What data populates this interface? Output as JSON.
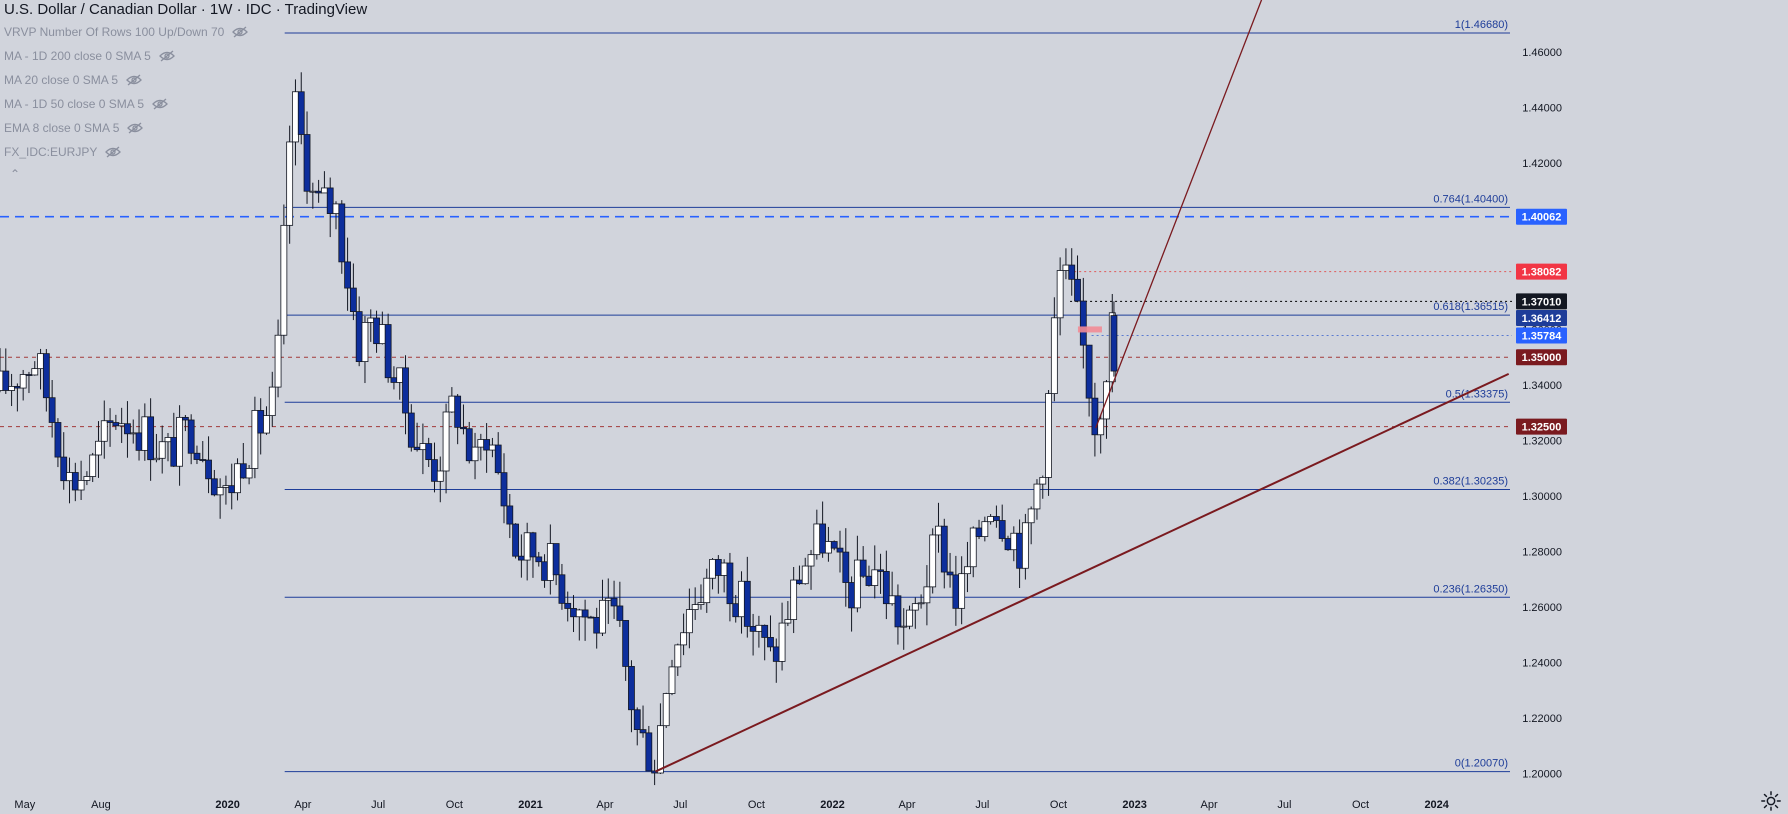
{
  "title": "U.S. Dollar / Canadian Dollar · 1W · IDC · TradingView",
  "indicators": [
    "VRVP Number Of Rows 100 Up/Down 70",
    "MA - 1D 200 close 0 SMA 5",
    "MA 20 close 0 SMA 5",
    "MA - 1D 50 close 0 SMA 5",
    "EMA 8 close 0 SMA 5",
    "FX_IDC:EURJPY"
  ],
  "colors": {
    "background": "#d1d4dc",
    "up_candle": "#ffffff",
    "down_candle": "#0d2e9c",
    "fib_line": "#1e3d99",
    "trend_line": "#7a1a1f",
    "dashed_blue": "#2962ff",
    "dashed_red": "#a33a3a",
    "axis_text": "#131722"
  },
  "chart_data": {
    "type": "candlestick",
    "title": "U.S. Dollar / Canadian Dollar · 1W · IDC · TradingView",
    "y_axis": {
      "ticks": [
        "1.46000",
        "1.44000",
        "1.42000",
        "1.40000",
        "1.38000",
        "1.36000",
        "1.34000",
        "1.32000",
        "1.30000",
        "1.28000",
        "1.26000",
        "1.24000",
        "1.22000",
        "1.20000"
      ],
      "ylim": [
        1.1955,
        1.4787
      ]
    },
    "x_axis": {
      "ticks": [
        {
          "label": "May",
          "date": "2019-05-01"
        },
        {
          "label": "Aug",
          "date": "2019-08-01"
        },
        {
          "label": "2020",
          "date": "2020-01-01"
        },
        {
          "label": "Apr",
          "date": "2020-04-01"
        },
        {
          "label": "Jul",
          "date": "2020-07-01"
        },
        {
          "label": "Oct",
          "date": "2020-10-01"
        },
        {
          "label": "2021",
          "date": "2021-01-01"
        },
        {
          "label": "Apr",
          "date": "2021-04-01"
        },
        {
          "label": "Jul",
          "date": "2021-07-01"
        },
        {
          "label": "Oct",
          "date": "2021-10-01"
        },
        {
          "label": "2022",
          "date": "2022-01-01"
        },
        {
          "label": "Apr",
          "date": "2022-04-01"
        },
        {
          "label": "Jul",
          "date": "2022-07-01"
        },
        {
          "label": "Oct",
          "date": "2022-10-01"
        },
        {
          "label": "2023",
          "date": "2023-01-01"
        },
        {
          "label": "Apr",
          "date": "2023-04-01"
        },
        {
          "label": "Jul",
          "date": "2023-07-01"
        },
        {
          "label": "Oct",
          "date": "2023-10-01"
        },
        {
          "label": "2024",
          "date": "2024-01-01"
        }
      ],
      "range": [
        "2019-04-01",
        "2024-04-01"
      ]
    },
    "anchors": [
      [
        "2019-04-01",
        1.338
      ],
      [
        "2019-05-15",
        1.35
      ],
      [
        "2019-06-25",
        1.305
      ],
      [
        "2019-07-20",
        1.31
      ],
      [
        "2019-08-20",
        1.33
      ],
      [
        "2019-09-15",
        1.325
      ],
      [
        "2019-10-20",
        1.315
      ],
      [
        "2019-11-20",
        1.325
      ],
      [
        "2019-12-30",
        1.3
      ],
      [
        "2020-01-20",
        1.315
      ],
      [
        "2020-02-28",
        1.335
      ],
      [
        "2020-03-19",
        1.445
      ],
      [
        "2020-04-15",
        1.405
      ],
      [
        "2020-05-10",
        1.405
      ],
      [
        "2020-06-08",
        1.355
      ],
      [
        "2020-06-25",
        1.365
      ],
      [
        "2020-08-20",
        1.317
      ],
      [
        "2020-09-10",
        1.31
      ],
      [
        "2020-10-01",
        1.335
      ],
      [
        "2020-10-25",
        1.31
      ],
      [
        "2020-11-10",
        1.325
      ],
      [
        "2020-12-15",
        1.28
      ],
      [
        "2021-01-15",
        1.28
      ],
      [
        "2021-02-15",
        1.265
      ],
      [
        "2021-03-15",
        1.255
      ],
      [
        "2021-04-15",
        1.255
      ],
      [
        "2021-05-10",
        1.215
      ],
      [
        "2021-06-01",
        1.205
      ],
      [
        "2021-06-20",
        1.245
      ],
      [
        "2021-07-20",
        1.265
      ],
      [
        "2021-08-20",
        1.275
      ],
      [
        "2021-09-15",
        1.26
      ],
      [
        "2021-10-20",
        1.24
      ],
      [
        "2021-11-25",
        1.275
      ],
      [
        "2021-12-20",
        1.285
      ],
      [
        "2022-01-20",
        1.265
      ],
      [
        "2022-02-20",
        1.275
      ],
      [
        "2022-04-01",
        1.25
      ],
      [
        "2022-05-10",
        1.285
      ],
      [
        "2022-06-01",
        1.262
      ],
      [
        "2022-07-10",
        1.3
      ],
      [
        "2022-08-20",
        1.28
      ],
      [
        "2022-09-15",
        1.32
      ],
      [
        "2022-10-01",
        1.38
      ],
      [
        "2022-10-15",
        1.375
      ],
      [
        "2022-11-02",
        1.35
      ],
      [
        "2022-11-15",
        1.325
      ],
      [
        "2022-12-07",
        1.365
      ]
    ],
    "last_candle": {
      "date": "2022-12-07",
      "open": 1.345,
      "high": 1.3701,
      "low": 1.343,
      "close": 1.365
    },
    "fib_levels": [
      {
        "ratio": "1",
        "value": 1.4668,
        "label": "1(1.46680)"
      },
      {
        "ratio": "0.764",
        "value": 1.404,
        "label": "0.764(1.40400)"
      },
      {
        "ratio": "0.618",
        "value": 1.36515,
        "label": "0.618(1.36515)"
      },
      {
        "ratio": "0.5",
        "value": 1.33375,
        "label": "0.5(1.33375)"
      },
      {
        "ratio": "0.382",
        "value": 1.30235,
        "label": "0.382(1.30235)"
      },
      {
        "ratio": "0.236",
        "value": 1.2635,
        "label": "0.236(1.26350)"
      },
      {
        "ratio": "0",
        "value": 1.2007,
        "label": "0(1.20070)"
      }
    ],
    "fib_start_date": "2020-03-10",
    "horizontal_lines": [
      {
        "value": 1.40062,
        "style": "dashed",
        "color": "#2962ff",
        "from": "2019-04-01"
      },
      {
        "value": 1.35,
        "style": "dashed",
        "color": "#a33a3a",
        "from": "2019-04-01"
      },
      {
        "value": 1.325,
        "style": "dashed",
        "color": "#a33a3a",
        "from": "2019-04-01"
      },
      {
        "value": 1.38082,
        "style": "dotted",
        "color": "#e05a5a",
        "from": "2022-10-20"
      },
      {
        "value": 1.3701,
        "style": "dotted",
        "color": "#000000",
        "from": "2022-10-15"
      },
      {
        "value": 1.35784,
        "style": "dotted",
        "color": "#5a7ad0",
        "from": "2022-11-10"
      }
    ],
    "trend_lines": [
      {
        "from": [
          "2021-06-01",
          1.2007
        ],
        "to": [
          "2024-03-28",
          1.344
        ]
      },
      {
        "from": [
          "2022-11-15",
          1.3245
        ],
        "to": [
          "2023-06-05",
          1.48
        ]
      }
    ],
    "price_labels": [
      {
        "text": "1.40062",
        "value": 1.40062,
        "bg": "#2962ff",
        "fg": "#ffffff"
      },
      {
        "text": "1.38082",
        "value": 1.38082,
        "bg": "#f23645",
        "fg": "#ffffff"
      },
      {
        "text": "1.37010",
        "value": 1.3701,
        "bg": "#131722",
        "fg": "#ffffff"
      },
      {
        "text": "1.36412",
        "value": 1.36412,
        "bg": "#1e3d99",
        "fg": "#ffffff"
      },
      {
        "text": "1.35784",
        "value": 1.35784,
        "bg": "#2962ff",
        "fg": "#ffffff"
      },
      {
        "text": "1.35000",
        "value": 1.35,
        "bg": "#7a1a1f",
        "fg": "#ffffff"
      },
      {
        "text": "1.32500",
        "value": 1.325,
        "bg": "#7a1a1f",
        "fg": "#ffffff"
      }
    ],
    "grid": false,
    "legend_position": "top-left"
  }
}
